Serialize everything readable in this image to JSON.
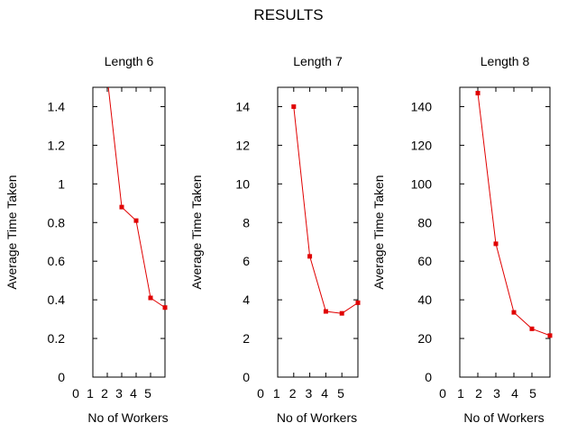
{
  "figure": {
    "title": "RESULTS"
  },
  "chart_data": [
    {
      "type": "line",
      "title": "Length 6",
      "xlabel": "No of Workers",
      "ylabel": "Average Time Taken",
      "xlim": [
        0,
        5
      ],
      "ylim": [
        0,
        1.5
      ],
      "x_ticks": [
        0,
        1,
        2,
        3,
        4,
        5
      ],
      "y_ticks": [
        0,
        0.2,
        0.4,
        0.6,
        0.8,
        1,
        1.2,
        1.4
      ],
      "y_tick_labels": [
        "0",
        "0.2",
        "0.4",
        "0.6",
        "0.8",
        "1",
        "1.2",
        "1.4"
      ],
      "grid": false,
      "series": [
        {
          "color": "#e00000",
          "x": [
            1,
            2,
            3,
            4,
            5
          ],
          "y": [
            1.55,
            0.88,
            0.81,
            0.41,
            0.36
          ]
        }
      ]
    },
    {
      "type": "line",
      "title": "Length 7",
      "xlabel": "No of Workers",
      "ylabel": "Average Time Taken",
      "xlim": [
        0,
        5
      ],
      "ylim": [
        0,
        15
      ],
      "x_ticks": [
        0,
        1,
        2,
        3,
        4,
        5
      ],
      "y_ticks": [
        0,
        2,
        4,
        6,
        8,
        10,
        12,
        14
      ],
      "y_tick_labels": [
        "0",
        "2",
        "4",
        "6",
        "8",
        "10",
        "12",
        "14"
      ],
      "grid": false,
      "series": [
        {
          "color": "#e00000",
          "x": [
            1,
            2,
            3,
            4,
            5
          ],
          "y": [
            14.0,
            6.25,
            3.4,
            3.3,
            3.85
          ]
        }
      ]
    },
    {
      "type": "line",
      "title": "Length 8",
      "xlabel": "No of Workers",
      "ylabel": "Average Time Taken",
      "xlim": [
        0,
        5
      ],
      "ylim": [
        0,
        150
      ],
      "x_ticks": [
        0,
        1,
        2,
        3,
        4,
        5
      ],
      "y_ticks": [
        0,
        20,
        40,
        60,
        80,
        100,
        120,
        140
      ],
      "y_tick_labels": [
        "0",
        "20",
        "40",
        "60",
        "80",
        "100",
        "120",
        "140"
      ],
      "grid": false,
      "series": [
        {
          "color": "#e00000",
          "x": [
            1,
            2,
            3,
            4,
            5
          ],
          "y": [
            147,
            69,
            33.5,
            25,
            21.5
          ]
        }
      ]
    }
  ]
}
